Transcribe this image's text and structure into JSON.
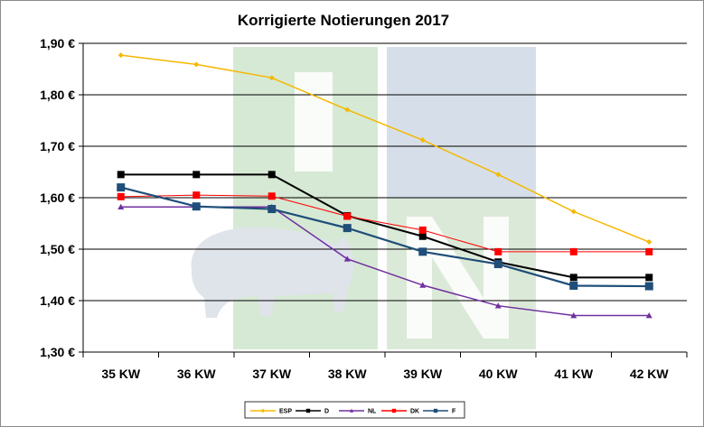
{
  "chart_data": {
    "type": "line",
    "title": "Korrigierte Notierungen 2017",
    "categories": [
      "35 KW",
      "36 KW",
      "37 KW",
      "38 KW",
      "39 KW",
      "40 KW",
      "41 KW",
      "42 KW"
    ],
    "y_ticks": [
      "1,30 €",
      "1,40 €",
      "1,50 €",
      "1,60 €",
      "1,70 €",
      "1,80 €",
      "1,90 €"
    ],
    "ylim": [
      1.3,
      1.9
    ],
    "grid": true,
    "legend_position": "bottom",
    "series": [
      {
        "name": "ESP",
        "color": "#f5b800",
        "marker": "diamond",
        "values": [
          1.877,
          1.859,
          1.833,
          1.771,
          1.712,
          1.645,
          1.573,
          1.514
        ]
      },
      {
        "name": "D",
        "color": "#000000",
        "marker": "square",
        "values": [
          1.645,
          1.645,
          1.645,
          1.565,
          1.525,
          1.475,
          1.445,
          1.445
        ]
      },
      {
        "name": "NL",
        "color": "#7030a0",
        "marker": "triangle",
        "values": [
          1.582,
          1.582,
          1.582,
          1.481,
          1.43,
          1.39,
          1.371,
          1.371
        ]
      },
      {
        "name": "DK",
        "color": "#ff0000",
        "marker": "square",
        "values": [
          1.602,
          1.605,
          1.603,
          1.564,
          1.537,
          1.495,
          1.495,
          1.495
        ]
      },
      {
        "name": "F",
        "color": "#1f4e79",
        "marker": "square",
        "values": [
          1.62,
          1.583,
          1.578,
          1.541,
          1.495,
          1.471,
          1.429,
          1.428
        ]
      }
    ]
  },
  "watermark": {
    "green": "#d6e9d4",
    "blue": "#d6dfe9"
  }
}
